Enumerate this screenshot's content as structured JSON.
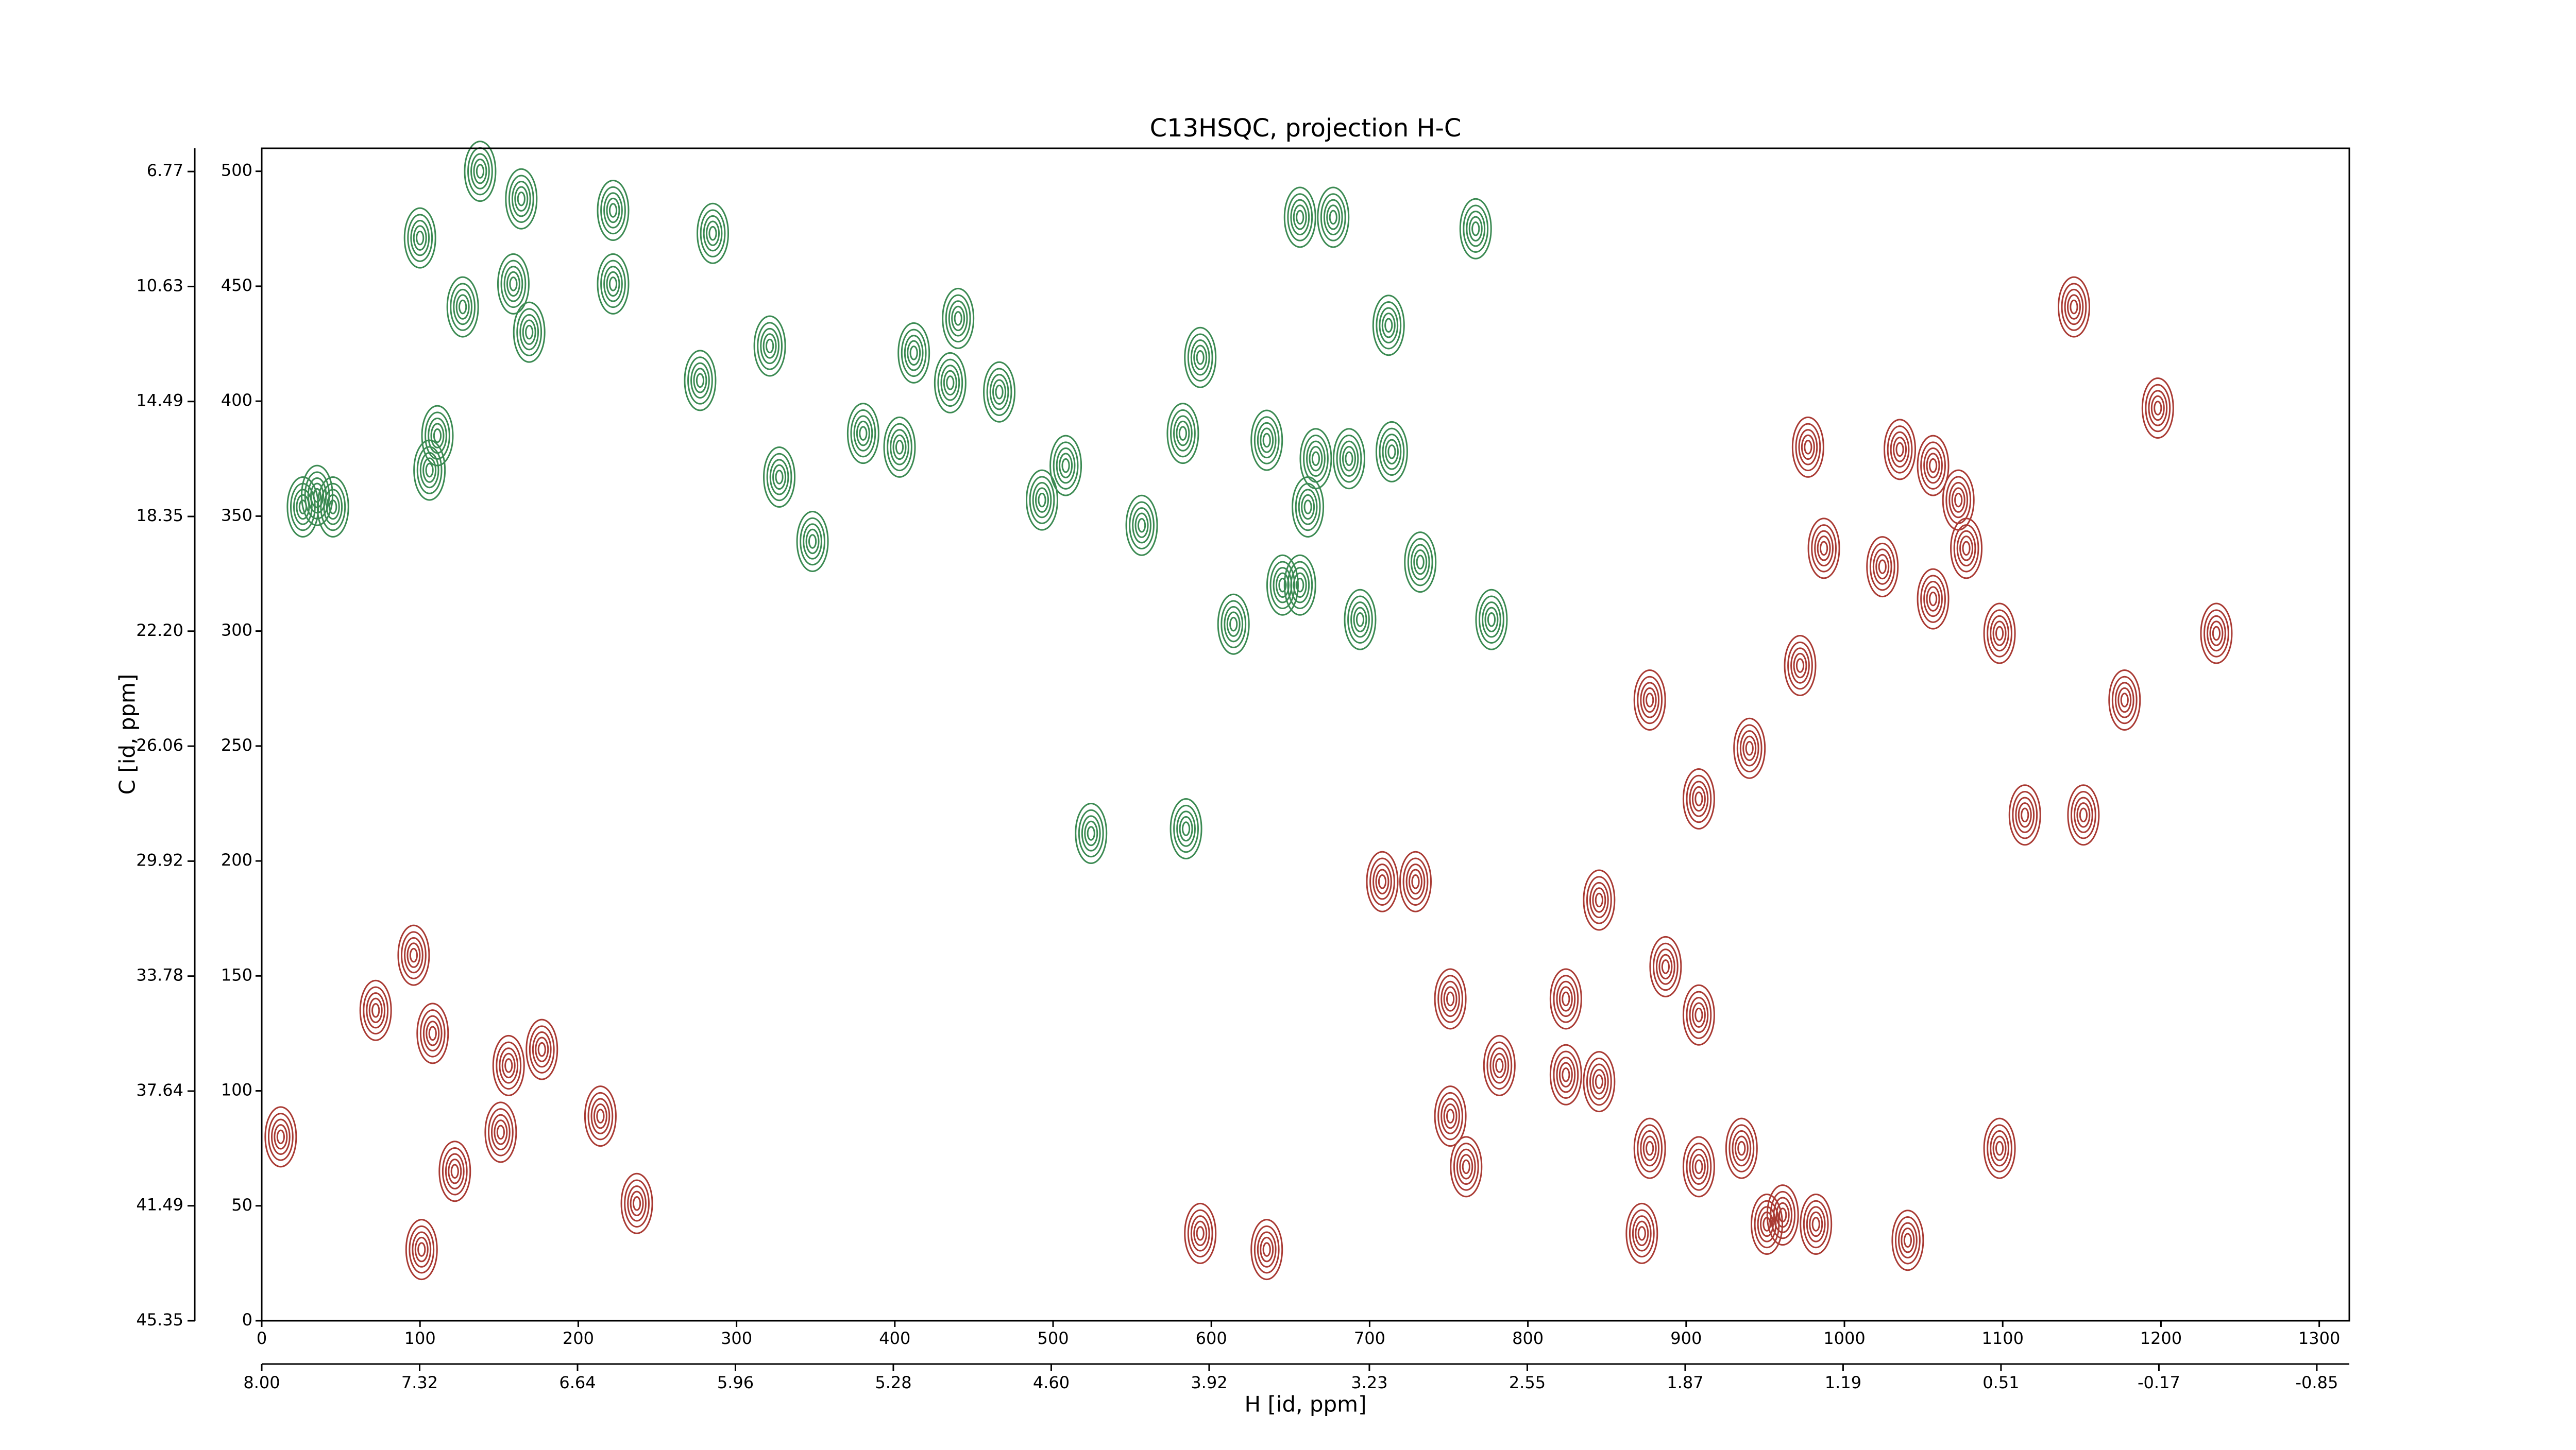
{
  "chart_data": {
    "type": "contour",
    "title": "C13HSQC, projection H-C",
    "x_label": "H [id, ppm]",
    "y_label": "C [id, ppm]",
    "xlim": [
      0,
      1319
    ],
    "xticks": [
      0,
      100,
      200,
      300,
      400,
      500,
      600,
      700,
      800,
      900,
      1000,
      1100,
      1200,
      1300
    ],
    "ylim": [
      0,
      510
    ],
    "yticks": [
      0,
      50,
      100,
      150,
      200,
      250,
      300,
      350,
      400,
      450,
      500
    ],
    "x2lim": [
      8.0,
      -0.99
    ],
    "x2ticks": [
      {
        "value": 8.0,
        "label": "8.00"
      },
      7.32,
      6.64,
      5.96,
      5.28,
      {
        "value": 4.6,
        "label": "4.60"
      },
      3.92,
      3.23,
      2.55,
      1.87,
      1.19,
      0.51,
      -0.17,
      -0.85
    ],
    "y2lim": [
      45.35,
      5.99
    ],
    "y2ticks": [
      6.77,
      10.63,
      14.49,
      18.35,
      {
        "value": 22.2,
        "label": "22.20"
      },
      26.06,
      29.92,
      33.78,
      37.64,
      41.49,
      45.35
    ],
    "series": [
      {
        "color": "#3b8a52",
        "x": [
          100,
          138,
          164,
          222,
          285,
          222,
          127,
          159,
          169,
          321,
          277,
          111,
          106,
          35,
          26,
          45,
          327,
          348,
          380,
          403,
          412,
          440,
          435,
          466,
          593,
          582,
          635,
          666,
          687,
          714,
          661,
          556,
          614,
          645,
          656,
          694,
          732,
          777,
          767,
          656,
          677,
          712,
          584,
          524,
          493,
          508
        ],
        "values": [
          471,
          500,
          488,
          483,
          473,
          451,
          441,
          451,
          430,
          424,
          409,
          385,
          370,
          359,
          354,
          354,
          367,
          339,
          386,
          380,
          421,
          436,
          408,
          404,
          419,
          386,
          383,
          375,
          375,
          378,
          354,
          346,
          303,
          320,
          320,
          305,
          330,
          305,
          475,
          480,
          480,
          433,
          214,
          212,
          357,
          372
        ]
      },
      {
        "color": "#a93a33",
        "x": [
          12,
          72,
          96,
          108,
          101,
          122,
          151,
          156,
          177,
          214,
          237,
          977,
          1035,
          1056,
          1072,
          1077,
          1024,
          987,
          1056,
          1098,
          1177,
          1145,
          1198,
          1235,
          877,
          940,
          908,
          845,
          887,
          824,
          908,
          972,
          751,
          761,
          782,
          824,
          845,
          935,
          961,
          877,
          908,
          593,
          635,
          729,
          708,
          751,
          1040,
          1098,
          1114,
          1151,
          951,
          872,
          982
        ],
        "values": [
          80,
          135,
          159,
          125,
          31,
          65,
          82,
          111,
          118,
          89,
          51,
          380,
          379,
          372,
          357,
          336,
          328,
          336,
          314,
          299,
          270,
          441,
          397,
          299,
          270,
          249,
          227,
          183,
          154,
          140,
          133,
          285,
          89,
          67,
          111,
          107,
          104,
          75,
          46,
          75,
          67,
          38,
          31,
          191,
          191,
          140,
          35,
          75,
          220,
          220,
          42,
          38,
          42
        ]
      }
    ]
  }
}
